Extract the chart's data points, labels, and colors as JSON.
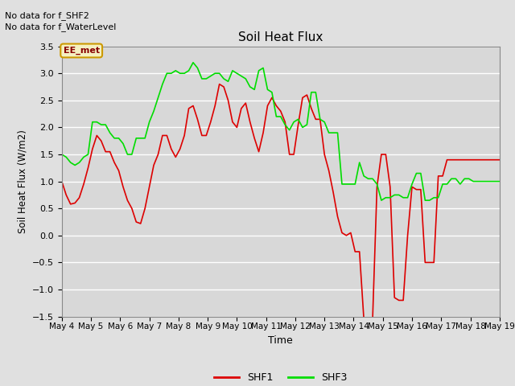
{
  "title": "Soil Heat Flux",
  "xlabel": "Time",
  "ylabel": "Soil Heat Flux (W/m2)",
  "ylim": [
    -1.5,
    3.5
  ],
  "yticks": [
    -1.5,
    -1.0,
    -0.5,
    0.0,
    0.5,
    1.0,
    1.5,
    2.0,
    2.5,
    3.0,
    3.5
  ],
  "xtick_labels": [
    "May 4",
    "May 5",
    "May 6",
    "May 7",
    "May 8",
    "May 9",
    "May 10",
    "May 11",
    "May 12",
    "May 13",
    "May 14",
    "May 15",
    "May 16",
    "May 17",
    "May 18",
    "May 19"
  ],
  "background_color": "#e0e0e0",
  "plot_bg_color": "#d8d8d8",
  "grid_color": "#ffffff",
  "shf1_color": "#dd0000",
  "shf3_color": "#00dd00",
  "annotation_text": "No data for f_SHF2\nNo data for f_WaterLevel",
  "legend_box_text": "EE_met",
  "legend_box_bg": "#f5f0c0",
  "legend_box_edge": "#cc9900",
  "shf1_x": [
    0.0,
    0.15,
    0.3,
    0.45,
    0.6,
    0.75,
    0.9,
    1.05,
    1.2,
    1.35,
    1.5,
    1.65,
    1.8,
    1.95,
    2.1,
    2.25,
    2.4,
    2.55,
    2.7,
    2.85,
    3.0,
    3.15,
    3.3,
    3.45,
    3.6,
    3.75,
    3.9,
    4.05,
    4.2,
    4.35,
    4.5,
    4.65,
    4.8,
    4.95,
    5.1,
    5.25,
    5.4,
    5.55,
    5.7,
    5.85,
    6.0,
    6.15,
    6.3,
    6.45,
    6.6,
    6.75,
    6.9,
    7.05,
    7.2,
    7.35,
    7.5,
    7.65,
    7.8,
    7.95,
    8.1,
    8.25,
    8.4,
    8.55,
    8.7,
    8.85,
    9.0,
    9.15,
    9.3,
    9.45,
    9.6,
    9.75,
    9.9,
    10.05,
    10.2,
    10.35,
    10.5,
    10.65,
    10.8,
    10.95,
    11.1,
    11.25,
    11.4,
    11.55,
    11.7,
    11.85,
    12.0,
    12.15,
    12.3,
    12.45,
    12.6,
    12.75,
    12.9,
    13.05,
    13.2,
    13.35,
    13.5,
    13.65,
    13.8,
    13.95,
    14.1,
    14.25,
    14.4,
    14.55,
    14.7,
    14.85,
    15.0
  ],
  "shf1_y": [
    1.0,
    0.75,
    0.58,
    0.6,
    0.7,
    0.95,
    1.25,
    1.6,
    1.85,
    1.75,
    1.55,
    1.55,
    1.35,
    1.2,
    0.9,
    0.65,
    0.5,
    0.25,
    0.22,
    0.5,
    0.9,
    1.3,
    1.5,
    1.85,
    1.85,
    1.6,
    1.45,
    1.6,
    1.85,
    2.35,
    2.4,
    2.15,
    1.85,
    1.85,
    2.1,
    2.4,
    2.8,
    2.75,
    2.5,
    2.1,
    2.0,
    2.35,
    2.45,
    2.1,
    1.8,
    1.55,
    1.9,
    2.4,
    2.55,
    2.4,
    2.3,
    2.1,
    1.5,
    1.5,
    2.05,
    2.55,
    2.6,
    2.35,
    2.15,
    2.15,
    1.5,
    1.2,
    0.8,
    0.35,
    0.05,
    0.0,
    0.05,
    -0.3,
    -0.3,
    -1.55,
    -1.55,
    -1.55,
    0.9,
    1.5,
    1.5,
    0.9,
    -1.15,
    -1.2,
    -1.2,
    0.0,
    0.9,
    0.85,
    0.85,
    -0.5,
    -0.5,
    -0.5,
    1.1,
    1.1,
    1.4,
    1.4,
    1.4,
    1.4,
    1.4,
    1.4,
    1.4,
    1.4,
    1.4,
    1.4,
    1.4,
    1.4,
    1.4
  ],
  "shf3_x": [
    0.0,
    0.15,
    0.3,
    0.45,
    0.6,
    0.75,
    0.9,
    1.05,
    1.2,
    1.35,
    1.5,
    1.65,
    1.8,
    1.95,
    2.1,
    2.25,
    2.4,
    2.55,
    2.7,
    2.85,
    3.0,
    3.15,
    3.3,
    3.45,
    3.6,
    3.75,
    3.9,
    4.05,
    4.2,
    4.35,
    4.5,
    4.65,
    4.8,
    4.95,
    5.1,
    5.25,
    5.4,
    5.55,
    5.7,
    5.85,
    6.0,
    6.15,
    6.3,
    6.45,
    6.6,
    6.75,
    6.9,
    7.05,
    7.2,
    7.35,
    7.5,
    7.65,
    7.8,
    7.95,
    8.1,
    8.25,
    8.4,
    8.55,
    8.7,
    8.85,
    9.0,
    9.15,
    9.3,
    9.45,
    9.6,
    9.75,
    9.9,
    10.05,
    10.2,
    10.35,
    10.5,
    10.65,
    10.8,
    10.95,
    11.1,
    11.25,
    11.4,
    11.55,
    11.7,
    11.85,
    12.0,
    12.15,
    12.3,
    12.45,
    12.6,
    12.75,
    12.9,
    13.05,
    13.2,
    13.35,
    13.5,
    13.65,
    13.8,
    13.95,
    14.1,
    14.25,
    14.4,
    14.55,
    14.7,
    14.85,
    15.0
  ],
  "shf3_y": [
    1.5,
    1.45,
    1.35,
    1.3,
    1.35,
    1.45,
    1.5,
    2.1,
    2.1,
    2.05,
    2.05,
    1.9,
    1.8,
    1.8,
    1.7,
    1.5,
    1.5,
    1.8,
    1.8,
    1.8,
    2.1,
    2.3,
    2.55,
    2.8,
    3.0,
    3.0,
    3.05,
    3.0,
    3.0,
    3.05,
    3.2,
    3.1,
    2.9,
    2.9,
    2.95,
    3.0,
    3.0,
    2.9,
    2.85,
    3.05,
    3.0,
    2.95,
    2.9,
    2.75,
    2.7,
    3.05,
    3.1,
    2.7,
    2.65,
    2.2,
    2.2,
    2.05,
    1.95,
    2.1,
    2.15,
    2.0,
    2.05,
    2.65,
    2.65,
    2.15,
    2.1,
    1.9,
    1.9,
    1.9,
    0.95,
    0.95,
    0.95,
    0.95,
    1.35,
    1.1,
    1.05,
    1.05,
    0.95,
    0.65,
    0.7,
    0.7,
    0.75,
    0.75,
    0.7,
    0.7,
    0.95,
    1.15,
    1.15,
    0.65,
    0.65,
    0.7,
    0.7,
    0.95,
    0.95,
    1.05,
    1.05,
    0.95,
    1.05,
    1.05,
    1.0,
    1.0,
    1.0,
    1.0,
    1.0,
    1.0,
    1.0
  ]
}
